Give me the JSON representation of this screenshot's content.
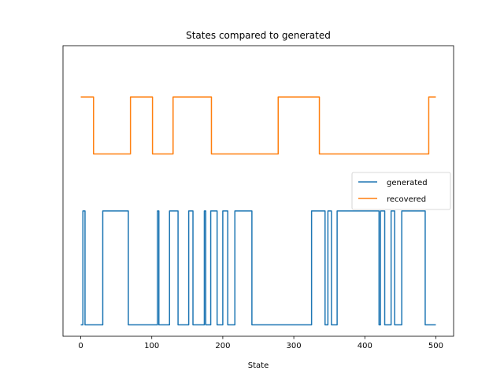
{
  "chart_data": {
    "type": "line",
    "title": "States compared to generated",
    "xlabel": "State",
    "ylabel": "",
    "xlim": [
      -25,
      525
    ],
    "ylim": [
      -0.2,
      4.9
    ],
    "xticks": [
      0,
      100,
      200,
      300,
      400,
      500
    ],
    "yticks_visible": false,
    "grid": false,
    "legend_position": "center-right",
    "series": [
      {
        "name": "generated",
        "color": "#1f77b4",
        "x": [
          0,
          3,
          3,
          6,
          6,
          31,
          31,
          67,
          67,
          108,
          108,
          110,
          110,
          125,
          125,
          137,
          137,
          152,
          152,
          158,
          158,
          174,
          174,
          176,
          176,
          183,
          183,
          192,
          192,
          200,
          200,
          207,
          207,
          217,
          217,
          241,
          241,
          325,
          325,
          344,
          344,
          348,
          348,
          353,
          353,
          361,
          361,
          420,
          420,
          422,
          422,
          428,
          428,
          437,
          437,
          442,
          442,
          452,
          452,
          485,
          485,
          500
        ],
        "y": [
          0,
          0,
          2,
          2,
          0,
          0,
          2,
          2,
          0,
          0,
          2,
          2,
          0,
          0,
          2,
          2,
          0,
          0,
          2,
          2,
          0,
          0,
          2,
          2,
          0,
          0,
          2,
          2,
          0,
          0,
          2,
          2,
          0,
          0,
          2,
          2,
          0,
          0,
          2,
          2,
          0,
          0,
          2,
          2,
          0,
          0,
          2,
          2,
          0,
          0,
          2,
          2,
          0,
          0,
          2,
          2,
          0,
          0,
          2,
          2,
          0,
          0
        ]
      },
      {
        "name": "recovered",
        "color": "#ff7f0e",
        "x": [
          0,
          18,
          18,
          70,
          70,
          101,
          101,
          130,
          130,
          184,
          184,
          278,
          278,
          336,
          336,
          490,
          490,
          500
        ],
        "y": [
          4.0,
          4.0,
          3.0,
          3.0,
          4.0,
          4.0,
          3.0,
          3.0,
          4.0,
          4.0,
          3.0,
          3.0,
          4.0,
          4.0,
          3.0,
          3.0,
          4.0,
          4.0
        ]
      }
    ]
  }
}
